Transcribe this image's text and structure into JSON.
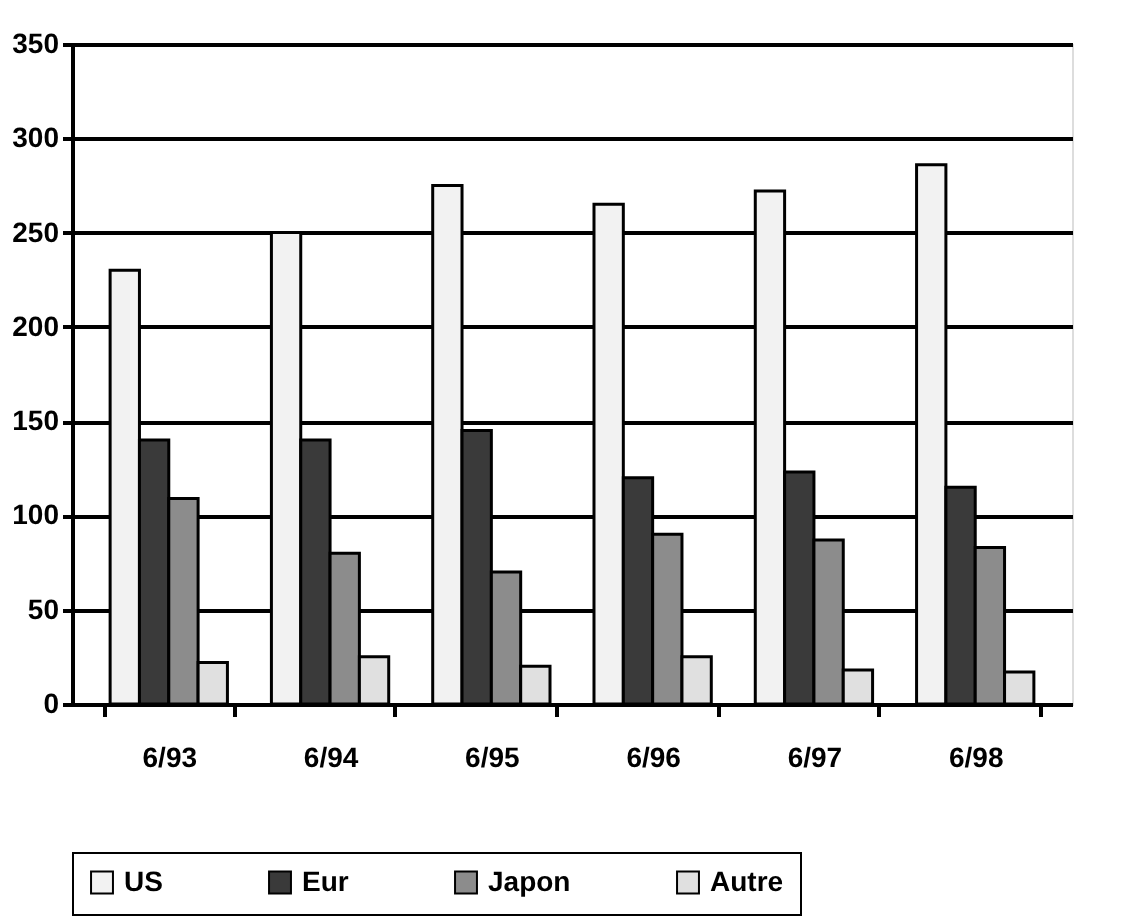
{
  "chart_data": {
    "type": "bar",
    "categories": [
      "6/93",
      "6/94",
      "6/95",
      "6/96",
      "6/97",
      "6/98"
    ],
    "series": [
      {
        "name": "US",
        "color": "#f2f2f2",
        "values": [
          230,
          250,
          275,
          265,
          272,
          286
        ]
      },
      {
        "name": "Eur",
        "color": "#3a3a3a",
        "values": [
          140,
          140,
          145,
          120,
          123,
          115
        ]
      },
      {
        "name": "Japon",
        "color": "#8c8c8c",
        "values": [
          109,
          80,
          70,
          90,
          87,
          83
        ]
      },
      {
        "name": "Autre",
        "color": "#e0e0e0",
        "values": [
          22,
          25,
          20,
          25,
          18,
          17
        ]
      }
    ],
    "ylim": [
      0,
      350
    ],
    "yticks": [
      0,
      50,
      100,
      150,
      200,
      250,
      300,
      350
    ],
    "grid": "y",
    "legend": "bottom"
  }
}
